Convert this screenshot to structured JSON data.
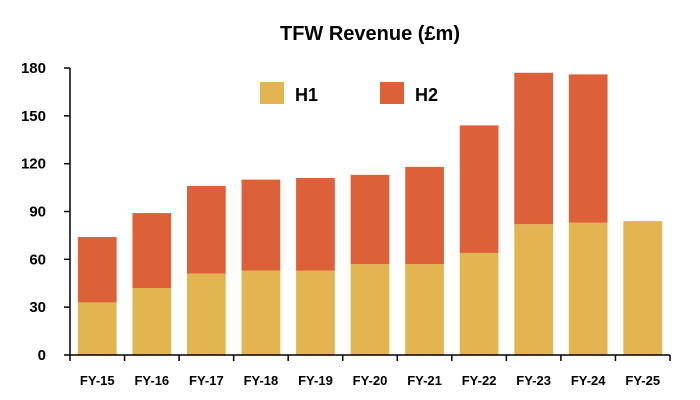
{
  "chart_data": {
    "type": "bar",
    "stacked": true,
    "title": "TFW Revenue (£m)",
    "xlabel": "",
    "ylabel": "",
    "ylim": [
      0,
      180
    ],
    "yticks": [
      "0",
      "30",
      "60",
      "90",
      "120",
      "150",
      "180"
    ],
    "grid": false,
    "legend_position": "top",
    "categories": [
      "FY-15",
      "FY-16",
      "FY-17",
      "FY-18",
      "FY-19",
      "FY-20",
      "FY-21",
      "FY-22",
      "FY-23",
      "FY-24",
      "FY-25"
    ],
    "series": [
      {
        "name": "H1",
        "color": "#E3B551",
        "values": [
          33,
          42,
          51,
          53,
          53,
          57,
          57,
          64,
          82,
          83,
          84
        ]
      },
      {
        "name": "H2",
        "color": "#DC6038",
        "values": [
          41,
          47,
          55,
          57,
          58,
          56,
          61,
          80,
          95,
          93,
          null
        ]
      }
    ]
  }
}
